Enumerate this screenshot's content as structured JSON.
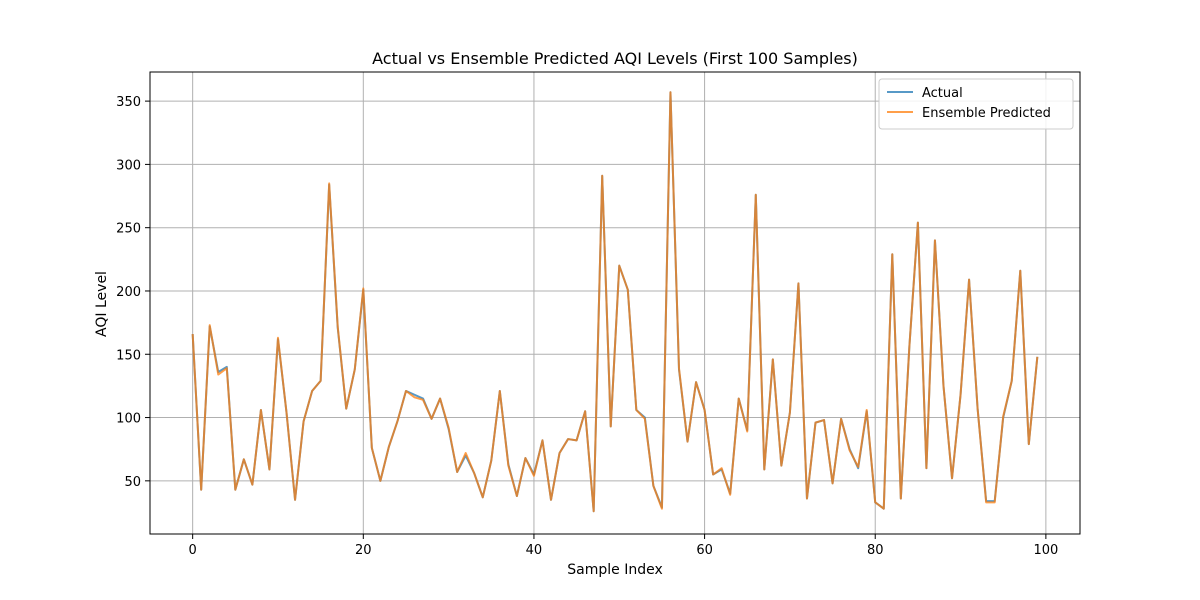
{
  "chart_data": {
    "type": "line",
    "title": "Actual vs Ensemble Predicted AQI Levels (First 100 Samples)",
    "xlabel": "Sample Index",
    "ylabel": "AQI Level",
    "xlim": [
      -5,
      104
    ],
    "ylim": [
      8,
      373
    ],
    "xticks": [
      0,
      20,
      40,
      60,
      80,
      100
    ],
    "yticks": [
      50,
      100,
      150,
      200,
      250,
      300,
      350
    ],
    "grid": true,
    "legend_position": "top-right",
    "series": [
      {
        "name": "Actual",
        "color": "#1f77b4",
        "values": [
          166,
          43,
          172,
          136,
          140,
          43,
          67,
          47,
          106,
          59,
          162,
          104,
          35,
          97,
          121,
          129,
          284,
          171,
          107,
          138,
          201,
          76,
          50,
          77,
          97,
          121,
          118,
          115,
          99,
          115,
          91,
          57,
          70,
          56,
          37,
          66,
          121,
          63,
          38,
          68,
          55,
          82,
          35,
          72,
          83,
          82,
          105,
          26,
          291,
          93,
          220,
          201,
          106,
          100,
          46,
          29,
          357,
          138,
          81,
          128,
          106,
          55,
          59,
          40,
          115,
          90,
          276,
          59,
          146,
          62,
          104,
          206,
          36,
          96,
          98,
          48,
          99,
          75,
          60,
          105,
          33,
          28,
          229,
          36,
          156,
          254,
          60,
          240,
          125,
          52,
          118,
          209,
          107,
          34,
          34,
          100,
          129,
          216,
          79,
          148
        ]
      },
      {
        "name": "Ensemble Predicted",
        "color": "#ff7f0e",
        "values": [
          166,
          43,
          173,
          134,
          139,
          43,
          67,
          47,
          106,
          59,
          163,
          104,
          35,
          97,
          121,
          129,
          285,
          172,
          107,
          138,
          202,
          76,
          50,
          77,
          97,
          121,
          116,
          114,
          99,
          115,
          92,
          57,
          72,
          56,
          37,
          66,
          121,
          62,
          38,
          68,
          54,
          82,
          35,
          72,
          83,
          82,
          105,
          26,
          291,
          93,
          220,
          201,
          106,
          99,
          46,
          28,
          357,
          139,
          81,
          128,
          106,
          55,
          60,
          39,
          115,
          89,
          276,
          59,
          146,
          62,
          104,
          206,
          36,
          96,
          98,
          48,
          99,
          74,
          61,
          106,
          33,
          28,
          229,
          36,
          156,
          254,
          60,
          240,
          125,
          52,
          118,
          209,
          107,
          33,
          33,
          101,
          129,
          216,
          79,
          148
        ]
      }
    ]
  }
}
